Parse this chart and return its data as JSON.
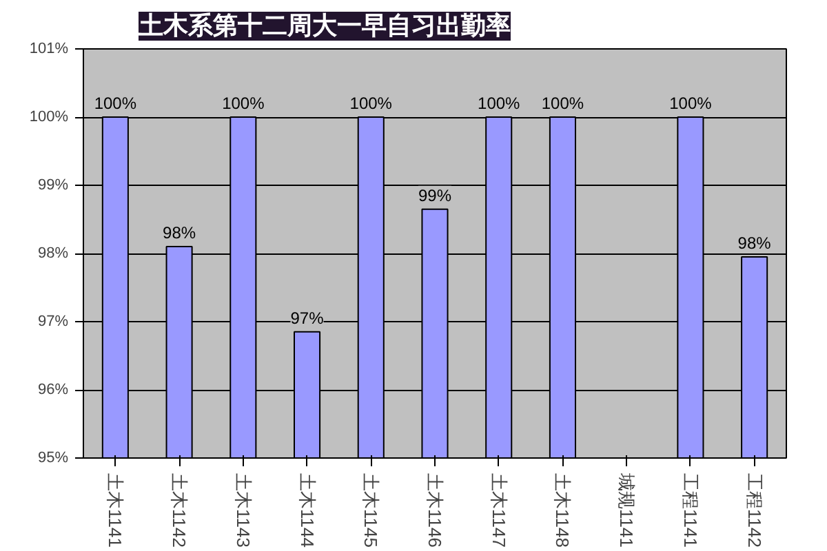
{
  "chart_data": {
    "type": "bar",
    "title": "土木系第十二周大一早自习出勤率",
    "categories": [
      "土木1141",
      "土木1142",
      "土木1143",
      "土木1144",
      "土木1145",
      "土木1146",
      "土木1147",
      "土木1148",
      "城规1141",
      "工程1141",
      "工程1142"
    ],
    "values": [
      100,
      98.1,
      100,
      96.85,
      100,
      98.65,
      100,
      100,
      null,
      100,
      97.95
    ],
    "value_labels": [
      "100%",
      "98%",
      "100%",
      "97%",
      "100%",
      "99%",
      "100%",
      "100%",
      null,
      "100%",
      "98%"
    ],
    "color": "#9999ff",
    "ylim": [
      95,
      101
    ],
    "yticks": [
      {
        "value": 95,
        "label": "95%"
      },
      {
        "value": 96,
        "label": "96%"
      },
      {
        "value": 97,
        "label": "97%"
      },
      {
        "value": 98,
        "label": "98%"
      },
      {
        "value": 99,
        "label": "99%"
      },
      {
        "value": 100,
        "label": "100%"
      },
      {
        "value": 101,
        "label": "101%"
      }
    ],
    "grid": "y"
  }
}
